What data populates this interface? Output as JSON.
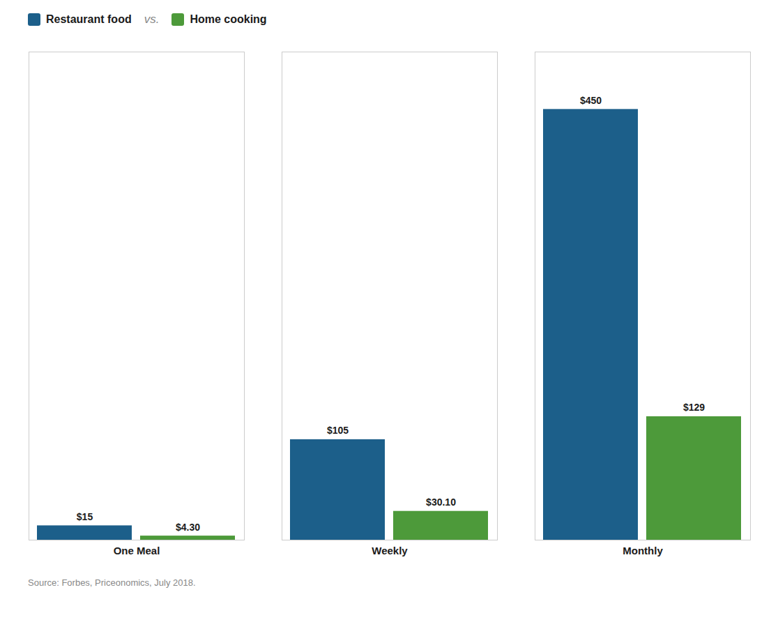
{
  "chart_data": {
    "type": "bar",
    "categories": [
      "One Meal",
      "Weekly",
      "Monthly"
    ],
    "series": [
      {
        "name": "Restaurant food",
        "color": "#1c5f8a",
        "values": [
          15,
          105,
          450
        ],
        "value_labels": [
          "$15",
          "$105",
          "$450"
        ]
      },
      {
        "name": "Home cooking",
        "color": "#4d9a3a",
        "values": [
          4.3,
          30.1,
          129
        ],
        "value_labels": [
          "$4.30",
          "$30.10",
          "$129"
        ]
      }
    ],
    "ylim": [
      0,
      510
    ],
    "data_labels": true,
    "tick_labels": "x",
    "grid": false,
    "legend": "upper left",
    "annotations": [
      "vs."
    ],
    "source": "Source: Forbes, Priceonomics, July 2018."
  }
}
